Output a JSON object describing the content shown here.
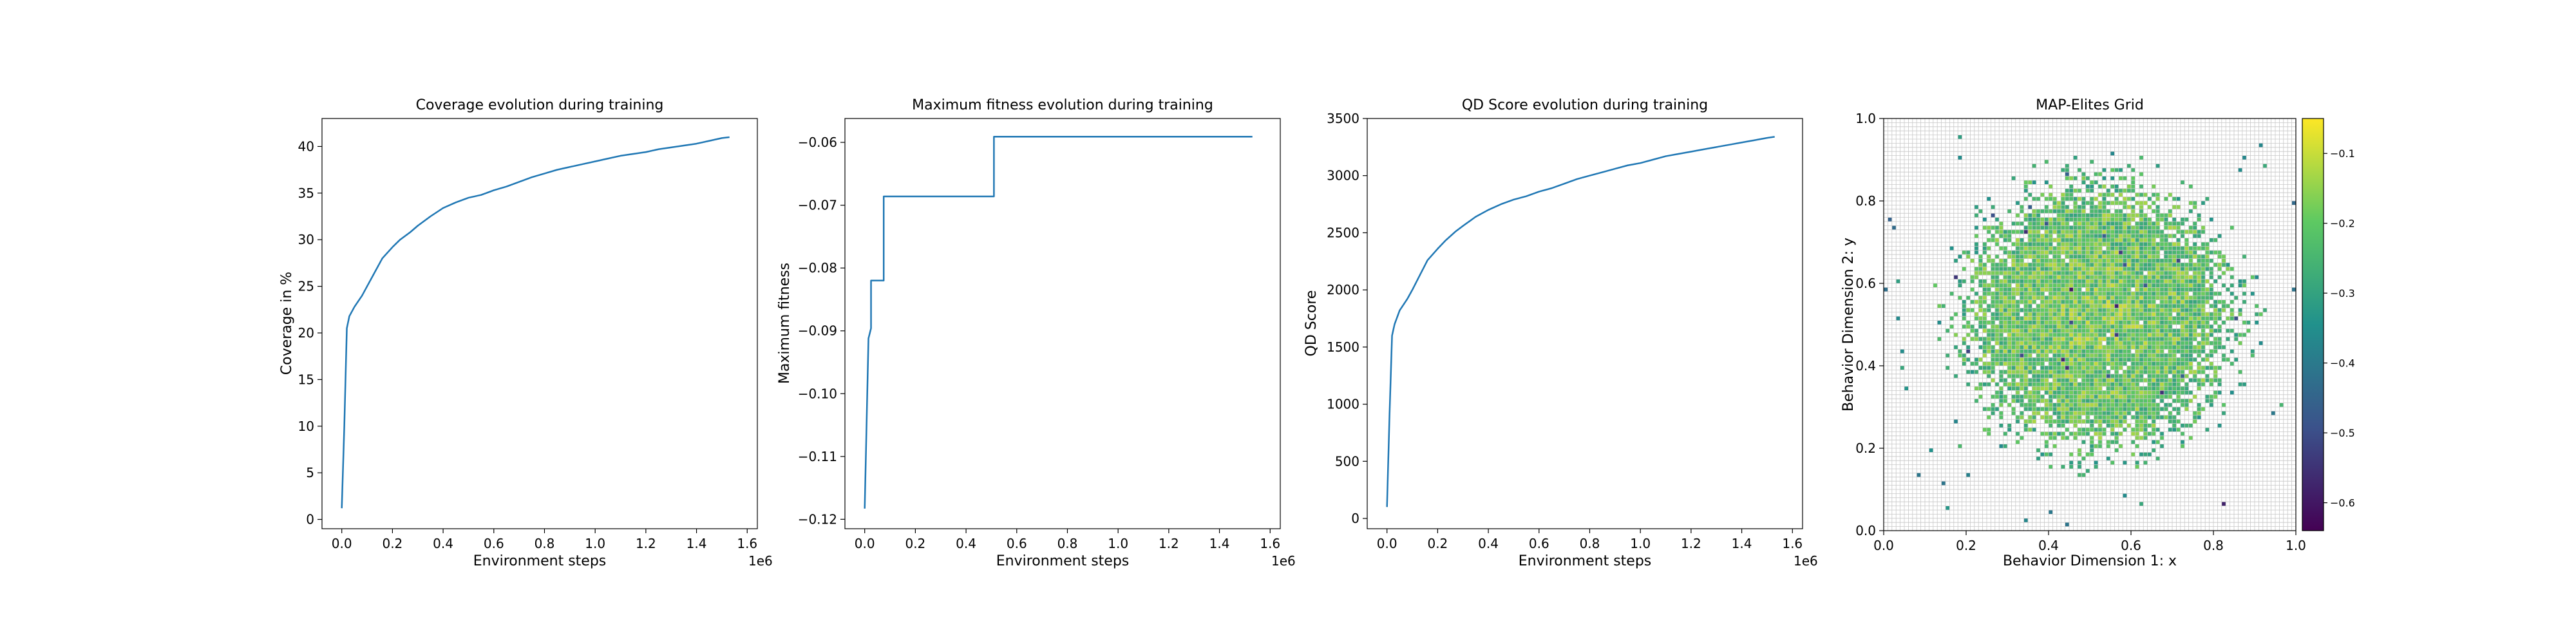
{
  "chart_data": [
    {
      "type": "line",
      "title": "Coverage evolution during training",
      "xlabel": "Environment steps",
      "ylabel": "Coverage in %",
      "x_offset_label": "1e6",
      "xlim": [
        -0.078,
        1.64
      ],
      "ylim": [
        -1.0,
        43.0
      ],
      "xticks": [
        0.0,
        0.2,
        0.4,
        0.6,
        0.8,
        1.0,
        1.2,
        1.4,
        1.6
      ],
      "xtick_labels": [
        "0.0",
        "0.2",
        "0.4",
        "0.6",
        "0.8",
        "1.0",
        "1.2",
        "1.4",
        "1.6"
      ],
      "yticks": [
        0,
        5,
        10,
        15,
        20,
        25,
        30,
        35,
        40
      ],
      "ytick_labels": [
        "0",
        "5",
        "10",
        "15",
        "20",
        "25",
        "30",
        "35",
        "40"
      ],
      "series": [
        {
          "color": "#1f77b4",
          "x": [
            0.0,
            0.01,
            0.02,
            0.03,
            0.05,
            0.08,
            0.1,
            0.13,
            0.16,
            0.2,
            0.23,
            0.27,
            0.3,
            0.35,
            0.4,
            0.45,
            0.5,
            0.55,
            0.6,
            0.65,
            0.7,
            0.75,
            0.8,
            0.85,
            0.9,
            0.95,
            1.0,
            1.05,
            1.1,
            1.15,
            1.2,
            1.25,
            1.3,
            1.35,
            1.4,
            1.45,
            1.5,
            1.53
          ],
          "y": [
            1.2,
            10.0,
            20.5,
            21.8,
            22.8,
            24.0,
            25.0,
            26.5,
            28.0,
            29.2,
            30.0,
            30.8,
            31.5,
            32.5,
            33.4,
            34.0,
            34.5,
            34.8,
            35.3,
            35.7,
            36.2,
            36.7,
            37.1,
            37.5,
            37.8,
            38.1,
            38.4,
            38.7,
            39.0,
            39.2,
            39.4,
            39.7,
            39.9,
            40.1,
            40.3,
            40.6,
            40.9,
            41.0
          ]
        }
      ]
    },
    {
      "type": "line",
      "title": "Maximum fitness evolution during training",
      "xlabel": "Environment steps",
      "ylabel": "Maximum fitness",
      "x_offset_label": "1e6",
      "xlim": [
        -0.078,
        1.64
      ],
      "ylim": [
        -0.1215,
        -0.0562
      ],
      "xticks": [
        0.0,
        0.2,
        0.4,
        0.6,
        0.8,
        1.0,
        1.2,
        1.4,
        1.6
      ],
      "xtick_labels": [
        "0.0",
        "0.2",
        "0.4",
        "0.6",
        "0.8",
        "1.0",
        "1.2",
        "1.4",
        "1.6"
      ],
      "yticks": [
        -0.12,
        -0.11,
        -0.1,
        -0.09,
        -0.08,
        -0.07,
        -0.06
      ],
      "ytick_labels": [
        "−0.12",
        "−0.11",
        "−0.10",
        "−0.09",
        "−0.08",
        "−0.07",
        "−0.06"
      ],
      "series": [
        {
          "color": "#1f77b4",
          "x": [
            0.0,
            0.0,
            0.015,
            0.015,
            0.025,
            0.025,
            0.05,
            0.05,
            0.075,
            0.075,
            0.51,
            0.51,
            1.53
          ],
          "y": [
            -0.1183,
            -0.1183,
            -0.0912,
            -0.0912,
            -0.0896,
            -0.082,
            -0.082,
            -0.082,
            -0.082,
            -0.0686,
            -0.0686,
            -0.0591,
            -0.0591
          ]
        }
      ]
    },
    {
      "type": "line",
      "title": "QD Score evolution during training",
      "xlabel": "Environment steps",
      "ylabel": "QD Score",
      "x_offset_label": "1e6",
      "xlim": [
        -0.078,
        1.64
      ],
      "ylim": [
        -90,
        3500
      ],
      "xticks": [
        0.0,
        0.2,
        0.4,
        0.6,
        0.8,
        1.0,
        1.2,
        1.4,
        1.6
      ],
      "xtick_labels": [
        "0.0",
        "0.2",
        "0.4",
        "0.6",
        "0.8",
        "1.0",
        "1.2",
        "1.4",
        "1.6"
      ],
      "yticks": [
        0,
        500,
        1000,
        1500,
        2000,
        2500,
        3000,
        3500
      ],
      "ytick_labels": [
        "0",
        "500",
        "1000",
        "1500",
        "2000",
        "2500",
        "3000",
        "3500"
      ],
      "series": [
        {
          "color": "#1f77b4",
          "x": [
            0.0,
            0.01,
            0.02,
            0.03,
            0.05,
            0.08,
            0.1,
            0.13,
            0.16,
            0.2,
            0.23,
            0.27,
            0.3,
            0.35,
            0.4,
            0.45,
            0.5,
            0.55,
            0.6,
            0.65,
            0.7,
            0.75,
            0.8,
            0.85,
            0.9,
            0.95,
            1.0,
            1.05,
            1.1,
            1.15,
            1.2,
            1.25,
            1.3,
            1.35,
            1.4,
            1.45,
            1.5,
            1.53
          ],
          "y": [
            100,
            900,
            1600,
            1700,
            1820,
            1920,
            2000,
            2130,
            2260,
            2360,
            2430,
            2510,
            2560,
            2640,
            2700,
            2750,
            2790,
            2820,
            2860,
            2890,
            2930,
            2970,
            3000,
            3030,
            3060,
            3090,
            3110,
            3140,
            3170,
            3190,
            3210,
            3230,
            3250,
            3270,
            3290,
            3310,
            3330,
            3340
          ]
        }
      ]
    },
    {
      "type": "heatmap",
      "title": "MAP-Elites Grid",
      "xlabel": "Behavior Dimension 1: x",
      "ylabel": "Behavior Dimension 2: y",
      "xlim": [
        0.0,
        1.0
      ],
      "ylim": [
        0.0,
        1.0
      ],
      "grid": true,
      "grid_cells": 100,
      "xticks": [
        0.0,
        0.2,
        0.4,
        0.6,
        0.8,
        1.0
      ],
      "xtick_labels": [
        "0.0",
        "0.2",
        "0.4",
        "0.6",
        "0.8",
        "1.0"
      ],
      "yticks": [
        0.0,
        0.2,
        0.4,
        0.6,
        0.8,
        1.0
      ],
      "ytick_labels": [
        "0.0",
        "0.2",
        "0.4",
        "0.6",
        "0.8",
        "1.0"
      ],
      "distribution": {
        "center": [
          0.52,
          0.52
        ],
        "core_radius": 0.24,
        "outer_radius": 0.42
      },
      "colormap": "viridis",
      "colorbar": {
        "range": [
          -0.64,
          -0.05
        ],
        "ticks": [
          -0.6,
          -0.5,
          -0.4,
          -0.3,
          -0.2,
          -0.1
        ],
        "tick_labels": [
          "−0.6",
          "−0.5",
          "−0.4",
          "−0.3",
          "−0.2",
          "−0.1"
        ]
      }
    }
  ]
}
